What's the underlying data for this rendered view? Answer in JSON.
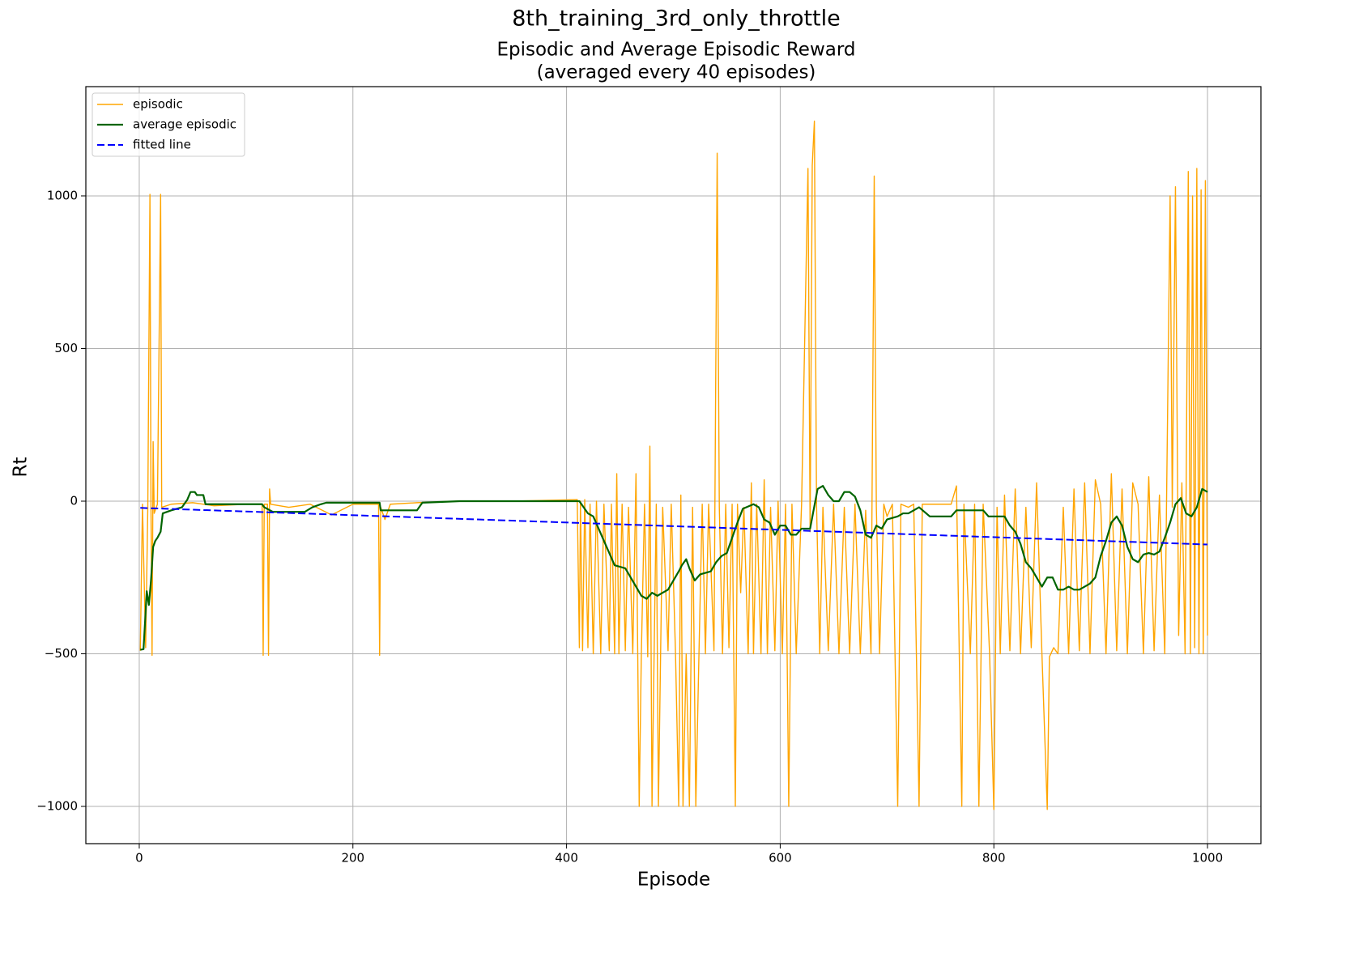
{
  "chart_data": {
    "type": "line",
    "suptitle": "8th_training_3rd_only_throttle",
    "title": [
      "Episodic and Average Episodic Reward",
      "(averaged every 40 episodes)"
    ],
    "x_label": "Episode",
    "y_label": "Rt",
    "xlim": [
      -50,
      1050
    ],
    "ylim": [
      -1122,
      1358
    ],
    "xticks": [
      0,
      200,
      400,
      600,
      800,
      1000
    ],
    "yticks": [
      {
        "value": -1000,
        "label": "−1000"
      },
      {
        "value": -500,
        "label": "−500"
      },
      0,
      500,
      1000
    ],
    "grid": true,
    "legend": "upper left",
    "series": [
      {
        "name": "episodic",
        "color": "#ffa500",
        "width": 1.4,
        "linestyle": "solid",
        "x": [
          1,
          3,
          6,
          8,
          10,
          11,
          12,
          13,
          14,
          17,
          20,
          21,
          30,
          50,
          70,
          100,
          115,
          116,
          117,
          120,
          121,
          122,
          123,
          140,
          160,
          180,
          200,
          224,
          225,
          226,
          230,
          235,
          260,
          300,
          350,
          410,
          412,
          413,
          415,
          417,
          420,
          422,
          425,
          428,
          432,
          435,
          440,
          442,
          445,
          447,
          449,
          452,
          455,
          458,
          462,
          465,
          468,
          470,
          473,
          476,
          478,
          480,
          482,
          484,
          486,
          490,
          495,
          498,
          502,
          505,
          507,
          509,
          512,
          515,
          518,
          521,
          524,
          527,
          530,
          533,
          538,
          541,
          543,
          546,
          549,
          552,
          555,
          558,
          560,
          563,
          566,
          570,
          573,
          575,
          578,
          582,
          585,
          588,
          591,
          595,
          598,
          602,
          605,
          608,
          611,
          615,
          620,
          626,
          628,
          630,
          632,
          634,
          637,
          640,
          645,
          650,
          655,
          660,
          665,
          670,
          675,
          680,
          685,
          688,
          690,
          693,
          697,
          700,
          705,
          710,
          713,
          720,
          725,
          730,
          733,
          740,
          760,
          765,
          770,
          772,
          778,
          782,
          786,
          790,
          796,
          800,
          803,
          806,
          810,
          815,
          820,
          825,
          830,
          835,
          840,
          845,
          850,
          852,
          856,
          860,
          865,
          870,
          875,
          880,
          885,
          890,
          895,
          900,
          905,
          910,
          915,
          920,
          925,
          930,
          935,
          940,
          945,
          950,
          955,
          960,
          965,
          967,
          970,
          973,
          976,
          979,
          982,
          984,
          986,
          988,
          990,
          992,
          994,
          996,
          998,
          1000
        ],
        "values": [
          -490,
          -10,
          -480,
          -20,
          1005,
          -30,
          -505,
          195,
          -40,
          -10,
          1005,
          -20,
          -10,
          -5,
          -15,
          -10,
          -10,
          -505,
          -10,
          -10,
          -505,
          40,
          -10,
          -20,
          -10,
          -45,
          -10,
          -10,
          -505,
          -20,
          -60,
          -10,
          -5,
          0,
          0,
          5,
          -480,
          0,
          -490,
          5,
          -480,
          -10,
          -500,
          0,
          -500,
          -10,
          -490,
          -10,
          -500,
          90,
          -500,
          -10,
          -490,
          -20,
          -500,
          90,
          -1000,
          -500,
          -10,
          -510,
          180,
          -1000,
          -490,
          -10,
          -1000,
          -20,
          -490,
          -10,
          -500,
          -1000,
          20,
          -1000,
          -500,
          -1000,
          -20,
          -1000,
          -490,
          -10,
          -500,
          -10,
          -490,
          1140,
          -20,
          -500,
          -10,
          -480,
          -10,
          -1000,
          -10,
          -300,
          -20,
          -500,
          60,
          -500,
          -10,
          -500,
          70,
          -500,
          -20,
          -490,
          0,
          -500,
          -10,
          -1000,
          -10,
          -500,
          -10,
          1090,
          -100,
          1100,
          1245,
          -10,
          -500,
          -20,
          -490,
          -10,
          -500,
          -20,
          -500,
          -10,
          -500,
          -30,
          -500,
          1065,
          -20,
          -500,
          -10,
          -50,
          -10,
          -1000,
          -10,
          -20,
          -10,
          -1000,
          -10,
          -10,
          -10,
          50,
          -1000,
          -10,
          -500,
          -10,
          -1000,
          -10,
          -500,
          -1010,
          -20,
          -500,
          20,
          -490,
          40,
          -500,
          -20,
          -480,
          60,
          -500,
          -1010,
          -510,
          -480,
          -500,
          -20,
          -500,
          40,
          -490,
          60,
          -500,
          70,
          -10,
          -500,
          90,
          -490,
          40,
          -500,
          60,
          -10,
          -500,
          80,
          -490,
          20,
          -500,
          1000,
          -20,
          1030,
          -440,
          60,
          -500,
          1080,
          -500,
          1000,
          -480,
          1090,
          -500,
          1020,
          -500,
          1050,
          -440
        ]
      },
      {
        "name": "average episodic",
        "color": "#006400",
        "width": 2.2,
        "linestyle": "solid",
        "x": [
          1,
          4,
          6,
          7,
          9,
          11,
          13,
          15,
          17,
          20,
          22,
          30,
          40,
          45,
          48,
          52,
          54,
          60,
          62,
          80,
          100,
          115,
          117,
          125,
          155,
          162,
          170,
          175,
          225,
          226,
          260,
          265,
          300,
          350,
          412,
          420,
          425,
          430,
          440,
          445,
          455,
          460,
          470,
          475,
          480,
          485,
          490,
          495,
          500,
          505,
          508,
          512,
          515,
          520,
          525,
          535,
          540,
          545,
          550,
          555,
          560,
          565,
          575,
          580,
          585,
          590,
          595,
          600,
          605,
          610,
          615,
          620,
          628,
          635,
          640,
          645,
          650,
          655,
          660,
          665,
          670,
          675,
          680,
          685,
          690,
          695,
          700,
          710,
          715,
          720,
          725,
          730,
          740,
          760,
          765,
          790,
          795,
          810,
          815,
          820,
          825,
          830,
          835,
          840,
          845,
          850,
          855,
          860,
          865,
          870,
          875,
          880,
          885,
          890,
          895,
          900,
          905,
          910,
          915,
          920,
          925,
          930,
          935,
          940,
          945,
          950,
          955,
          960,
          965,
          970,
          975,
          980,
          985,
          990,
          995,
          1000
        ],
        "values": [
          -487,
          -485,
          -360,
          -295,
          -340,
          -260,
          -150,
          -130,
          -120,
          -100,
          -40,
          -30,
          -20,
          5,
          30,
          30,
          20,
          20,
          -10,
          -10,
          -10,
          -10,
          -20,
          -35,
          -35,
          -20,
          -10,
          -5,
          -5,
          -30,
          -30,
          -5,
          0,
          0,
          0,
          -40,
          -50,
          -90,
          -170,
          -210,
          -220,
          -250,
          -310,
          -320,
          -300,
          -310,
          -300,
          -290,
          -260,
          -230,
          -210,
          -190,
          -220,
          -260,
          -240,
          -230,
          -200,
          -180,
          -170,
          -120,
          -70,
          -25,
          -10,
          -20,
          -60,
          -70,
          -110,
          -80,
          -80,
          -110,
          -110,
          -90,
          -90,
          40,
          50,
          20,
          0,
          0,
          30,
          30,
          15,
          -30,
          -110,
          -120,
          -80,
          -90,
          -60,
          -50,
          -40,
          -40,
          -30,
          -20,
          -50,
          -50,
          -30,
          -30,
          -50,
          -50,
          -80,
          -100,
          -140,
          -200,
          -220,
          -250,
          -280,
          -250,
          -250,
          -290,
          -290,
          -280,
          -290,
          -290,
          -280,
          -270,
          -250,
          -180,
          -130,
          -70,
          -50,
          -80,
          -150,
          -190,
          -200,
          -175,
          -170,
          -175,
          -165,
          -120,
          -70,
          -10,
          10,
          -40,
          -50,
          -20,
          40,
          30
        ]
      },
      {
        "name": "fitted line",
        "color": "#0000ff",
        "width": 2,
        "linestyle": "dashed",
        "x": [
          1,
          1000
        ],
        "values": [
          -22,
          -142
        ]
      }
    ]
  }
}
